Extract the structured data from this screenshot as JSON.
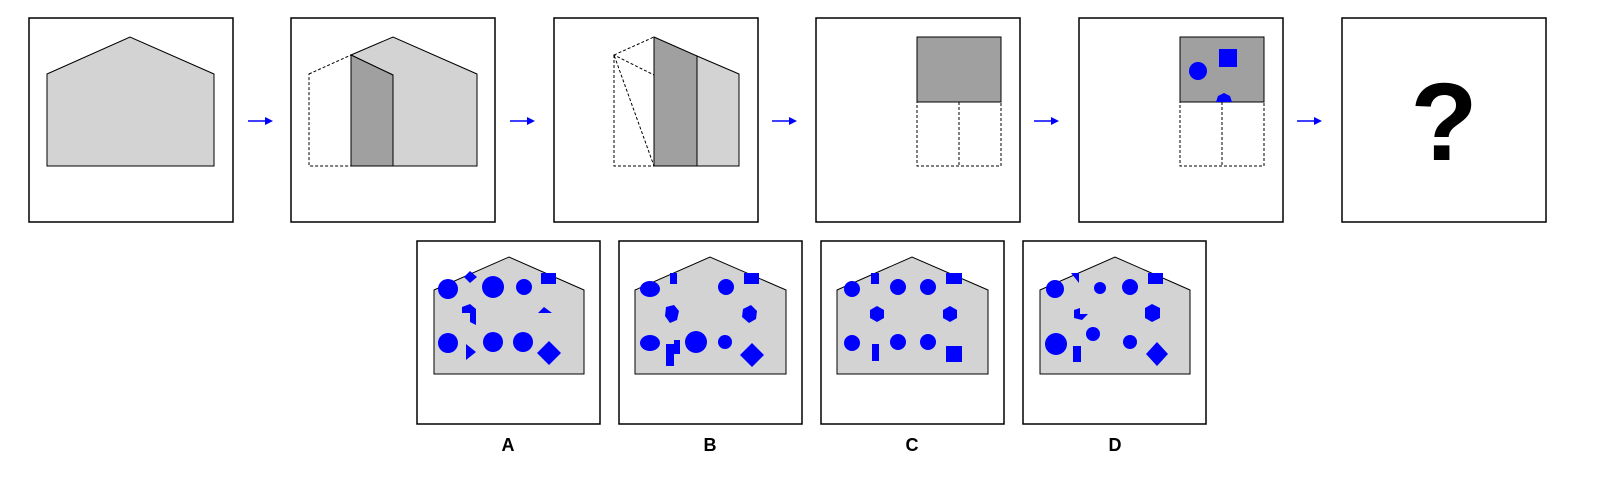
{
  "sequence": {
    "question_mark": "?",
    "arrow_color": "#0000ff"
  },
  "options": [
    {
      "label": "A"
    },
    {
      "label": "B"
    },
    {
      "label": "C"
    },
    {
      "label": "D"
    }
  ],
  "colors": {
    "frame": "#000000",
    "light_gray": "#d3d3d3",
    "dark_gray": "#a0a0a0",
    "shape_blue": "#0000ff"
  }
}
